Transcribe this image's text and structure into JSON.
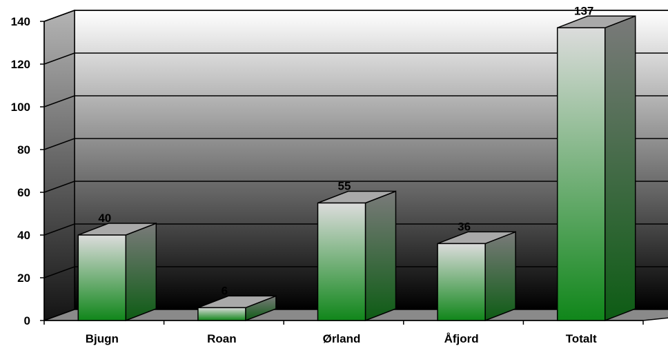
{
  "chart_data": {
    "type": "bar",
    "style": "3d-column",
    "categories": [
      "Bjugn",
      "Roan",
      "Ørland",
      "Åfjord",
      "Totalt"
    ],
    "values": [
      40,
      6,
      55,
      36,
      137
    ],
    "data_labels": [
      "40",
      "6",
      "55",
      "36",
      "137"
    ],
    "y_ticks": [
      "0",
      "20",
      "40",
      "60",
      "80",
      "100",
      "120",
      "140"
    ],
    "ylim": [
      0,
      140
    ],
    "ystep": 20,
    "grid": true,
    "legend": "none",
    "title": "",
    "xlabel": "",
    "ylabel": ""
  },
  "colors": {
    "bar_top": "#dcdcdc",
    "bar_bottom": "#10861a",
    "wall_top": "#ffffff",
    "wall_bottom": "#000000",
    "side_wall_top": "#b4b4b4",
    "side_wall_bottom": "#141414",
    "floor": "#8a8a8a",
    "outline": "#000000"
  }
}
